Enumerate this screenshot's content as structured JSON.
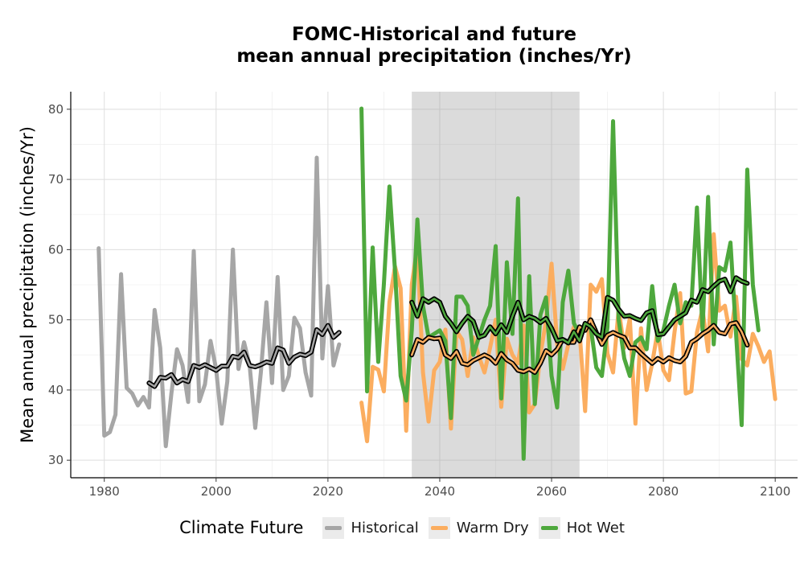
{
  "chart_data": {
    "type": "line",
    "title": [
      "FOMC-Historical and future",
      "mean annual precipitation (inches/Yr)"
    ],
    "ylabel": "Mean annual precipitation (inches/Yr)",
    "xlabel": "",
    "xlim": [
      1974,
      2104
    ],
    "ylim": [
      27.5,
      82.5
    ],
    "xticks": [
      1980,
      2000,
      2020,
      2040,
      2060,
      2080,
      2100
    ],
    "yticks": [
      30,
      40,
      50,
      60,
      70,
      80
    ],
    "shaded_period": [
      2035,
      2065
    ],
    "grid": true,
    "legend": {
      "title": "Climate Future",
      "position": "bottom",
      "entries": [
        {
          "label": "Historical",
          "color": "#a6a6a6"
        },
        {
          "label": "Warm Dry",
          "color": "#fbad5f"
        },
        {
          "label": "Hot Wet",
          "color": "#4ea83d"
        }
      ]
    },
    "series": [
      {
        "name": "Historical",
        "color": "#a6a6a6",
        "x_start": 1979,
        "values": [
          60.2,
          33.5,
          34.0,
          36.5,
          56.5,
          40.3,
          39.5,
          37.8,
          39.0,
          37.5,
          51.4,
          46.0,
          32.0,
          39.5,
          45.8,
          43.5,
          38.3,
          59.8,
          38.4,
          40.8,
          47.0,
          43.0,
          35.2,
          41.2,
          60.0,
          43.0,
          46.8,
          43.5,
          34.6,
          42.5,
          52.5,
          41.0,
          56.1,
          40.0,
          42.0,
          50.3,
          48.8,
          42.5,
          39.2,
          73.1,
          44.5,
          54.8,
          43.5,
          46.5
        ]
      },
      {
        "name": "Historical (moving average)",
        "color": "#000000",
        "x_start": 1988,
        "values": [
          41.0,
          40.5,
          41.8,
          41.7,
          42.2,
          41.0,
          41.5,
          41.2,
          43.5,
          43.2,
          43.6,
          43.2,
          42.8,
          43.4,
          43.4,
          44.8,
          44.6,
          45.4,
          43.5,
          43.3,
          43.6,
          44.0,
          43.8,
          46.0,
          45.7,
          43.8,
          44.7,
          45.1,
          44.9,
          45.4,
          48.6,
          47.9,
          49.2,
          47.5,
          48.2
        ]
      },
      {
        "name": "Warm Dry",
        "color": "#fbad5f",
        "x_start": 2026,
        "values": [
          38.2,
          32.7,
          43.3,
          42.9,
          39.8,
          52.5,
          57.6,
          54.5,
          34.2,
          55.0,
          60.5,
          42.5,
          35.5,
          42.8,
          44.0,
          48.6,
          34.5,
          48.4,
          47.2,
          42.0,
          47.5,
          44.8,
          42.5,
          46.0,
          50.0,
          37.6,
          47.3,
          45.0,
          43.8,
          49.2,
          36.8,
          38.0,
          45.0,
          49.8,
          58.0,
          46.5,
          43.0,
          46.5,
          49.0,
          48.5,
          37.0,
          55.0,
          54.0,
          55.8,
          45.2,
          42.5,
          51.5,
          46.0,
          50.2,
          35.2,
          48.8,
          40.0,
          43.8,
          48.5,
          42.8,
          41.4,
          48.3,
          53.8,
          39.5,
          39.8,
          48.2,
          51.5,
          45.5,
          62.2,
          51.3,
          52.0,
          47.6,
          53.3,
          44.4,
          43.5,
          48.0,
          46.2,
          44.0,
          45.5,
          38.7
        ]
      },
      {
        "name": "Hot Wet",
        "color": "#4ea83d",
        "x_start": 2026,
        "values": [
          80.1,
          39.8,
          60.3,
          44.0,
          55.0,
          69.0,
          57.0,
          42.0,
          38.5,
          48.5,
          64.3,
          52.0,
          47.5,
          48.0,
          48.5,
          47.0,
          36.0,
          53.3,
          53.3,
          52.0,
          45.0,
          47.5,
          50.0,
          52.0,
          60.5,
          38.8,
          58.2,
          48.0,
          67.3,
          30.2,
          56.2,
          38.0,
          50.7,
          53.2,
          42.0,
          37.5,
          52.5,
          57.0,
          49.5,
          48.0,
          49.5,
          49.0,
          43.2,
          42.0,
          49.0,
          78.3,
          50.0,
          44.5,
          42.0,
          46.8,
          47.5,
          45.8,
          54.8,
          47.0,
          48.5,
          52.0,
          55.0,
          49.5,
          52.5,
          52.0,
          66.0,
          48.5,
          67.5,
          46.5,
          57.5,
          57.0,
          61.0,
          48.0,
          35.0,
          71.4,
          55.0,
          48.5
        ]
      },
      {
        "name": "Warm Dry (moving average)",
        "color": "#000000",
        "x_start": 2035,
        "values": [
          45.0,
          47.2,
          46.8,
          47.5,
          47.3,
          47.4,
          45.0,
          44.5,
          45.5,
          43.8,
          43.6,
          44.2,
          44.6,
          45.0,
          44.6,
          43.8,
          45.2,
          44.3,
          43.8,
          42.8,
          42.6,
          43.0,
          42.5,
          43.8,
          45.6,
          45.0,
          45.8,
          47.2,
          46.8,
          46.8,
          49.0,
          48.5,
          50.0,
          48.2,
          46.5,
          47.8,
          48.2,
          47.8,
          47.5,
          46.0,
          46.0,
          45.2,
          44.5,
          43.8,
          44.5,
          44.0,
          44.6,
          44.2,
          44.0,
          44.8,
          46.8,
          47.3,
          48.0,
          48.5,
          49.2,
          48.2,
          48.0,
          49.4,
          49.6,
          48.3,
          46.4
        ]
      },
      {
        "name": "Hot Wet (moving average)",
        "color": "#000000",
        "x_start": 2035,
        "values": [
          52.5,
          50.5,
          53.0,
          52.5,
          53.0,
          52.5,
          50.5,
          49.5,
          48.3,
          49.5,
          50.5,
          49.8,
          47.5,
          47.8,
          49.0,
          48.0,
          49.3,
          48.2,
          50.5,
          52.5,
          50.0,
          50.5,
          50.2,
          49.6,
          50.2,
          48.8,
          47.0,
          47.2,
          46.7,
          48.3,
          47.0,
          49.5,
          49.0,
          48.0,
          47.5,
          53.2,
          52.8,
          51.5,
          50.5,
          50.6,
          50.2,
          49.9,
          51.0,
          51.3,
          47.9,
          48.0,
          49.0,
          50.0,
          50.5,
          51.0,
          52.8,
          52.5,
          54.3,
          54.0,
          54.8,
          55.5,
          55.8,
          54.0,
          56.0,
          55.5,
          55.2
        ]
      }
    ]
  }
}
